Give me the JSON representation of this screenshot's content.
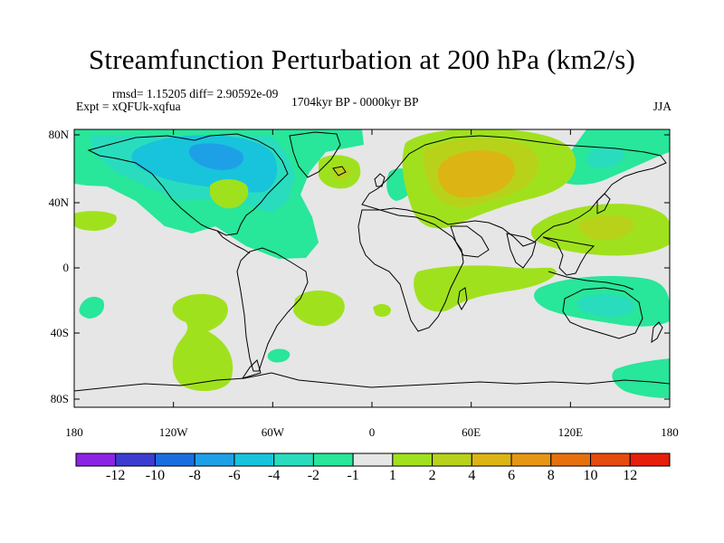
{
  "title": "Streamfunction Perturbation at 200 hPa (km2/s)",
  "stats_text": "rmsd= 1.15205 diff= 2.90592e-09",
  "experiment_text": "Expt = xQFUk-xqfua",
  "period_text": "1704kyr BP - 0000kyr BP",
  "season": "JJA",
  "map": {
    "lat_ticks": [
      "80N",
      "40N",
      "0",
      "40S",
      "80S"
    ],
    "lon_ticks": [
      "180",
      "120W",
      "60W",
      "0",
      "60E",
      "120E",
      "180"
    ],
    "background_fill": "#e6e6e6",
    "coastline_color": "#000000"
  },
  "colorbar": {
    "labels": [
      "-12",
      "-10",
      "-8",
      "-6",
      "-4",
      "-2",
      "-1",
      "1",
      "2",
      "4",
      "6",
      "8",
      "10",
      "12"
    ],
    "colors": [
      "#8c24e6",
      "#3c3cd2",
      "#1a6ee0",
      "#1ea0e6",
      "#18c3dc",
      "#2adcbe",
      "#28e69a",
      "#e6e6e6",
      "#a0e11e",
      "#b8d21a",
      "#dcb414",
      "#e69614",
      "#e6700e",
      "#e64a0c",
      "#e61e0a"
    ]
  },
  "field_colors": {
    "neg_weak": "#28e69a",
    "neg_mid": "#2adcbe",
    "neg_strong": "#18c3dc",
    "neg_stronger": "#1ea0e6",
    "pos_weak": "#a0e11e",
    "pos_mid": "#b8d21a",
    "pos_strong": "#dcb414"
  }
}
